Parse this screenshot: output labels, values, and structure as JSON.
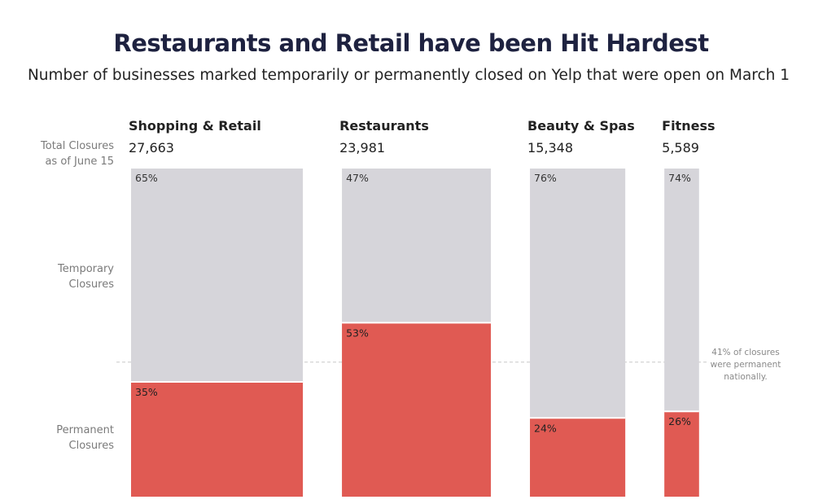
{
  "title": "Restaurants and Retail have been Hit Hardest",
  "subtitle": "Number of businesses marked temporarily or permanently closed on Yelp that were open on March 1",
  "row_labels": {
    "total_line1": "Total Closures",
    "total_line2": "as of June 15",
    "temporary_line1": "Temporary",
    "temporary_line2": "Closures",
    "permanent_line1": "Permanent",
    "permanent_line2": "Closures"
  },
  "colors": {
    "temporary": "#d6d5da",
    "permanent": "#e05a53",
    "reference_line": "#c8c8c8"
  },
  "chart_data": {
    "type": "bar",
    "subtype": "stacked-100-percent, bar width proportional to total",
    "title": "Restaurants and Retail have been Hit Hardest",
    "subtitle": "Number of businesses marked temporarily or permanently closed on Yelp that were open on March 1",
    "categories": [
      "Shopping & Retail",
      "Restaurants",
      "Beauty & Spas",
      "Fitness"
    ],
    "totals": [
      27663,
      23981,
      15348,
      5589
    ],
    "total_labels": [
      "27,663",
      "23,981",
      "15,348",
      "5,589"
    ],
    "series": [
      {
        "name": "Temporary Closures",
        "values": [
          65,
          47,
          76,
          74
        ],
        "labels": [
          "65%",
          "47%",
          "76%",
          "74%"
        ]
      },
      {
        "name": "Permanent Closures",
        "values": [
          35,
          53,
          24,
          26
        ],
        "labels": [
          "35%",
          "53%",
          "24%",
          "26%"
        ]
      }
    ],
    "reference_line": {
      "value": 41,
      "annotation": [
        "41% of closures",
        "were permanent",
        "nationally."
      ]
    },
    "ylim": [
      0,
      100
    ]
  }
}
